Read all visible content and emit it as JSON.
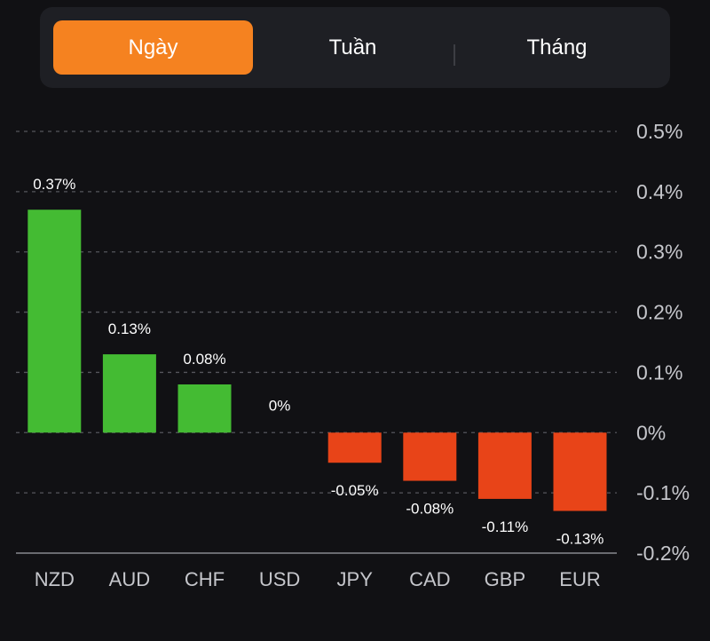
{
  "tabs": [
    {
      "label": "Ngày",
      "active": true
    },
    {
      "label": "Tuần",
      "active": false
    },
    {
      "label": "Tháng",
      "active": false
    }
  ],
  "colors": {
    "positive": "#44bb33",
    "negative": "#e84418",
    "accent": "#f58220",
    "background": "#111114",
    "grid": "#55565c",
    "text": "#c5c6cb"
  },
  "chart_data": {
    "type": "bar",
    "categories": [
      "NZD",
      "AUD",
      "CHF",
      "USD",
      "JPY",
      "CAD",
      "GBP",
      "EUR"
    ],
    "values": [
      0.37,
      0.13,
      0.08,
      0,
      -0.05,
      -0.08,
      -0.11,
      -0.13
    ],
    "data_labels": [
      "0.37%",
      "0.13%",
      "0.08%",
      "0%",
      "-0.05%",
      "-0.08%",
      "-0.11%",
      "-0.13%"
    ],
    "y_ticks": [
      0.5,
      0.4,
      0.3,
      0.2,
      0.1,
      0,
      -0.1,
      -0.2
    ],
    "y_tick_labels": [
      "0.5%",
      "0.4%",
      "0.3%",
      "0.2%",
      "0.1%",
      "0%",
      "-0.1%",
      "-0.2%"
    ],
    "ylim": [
      -0.2,
      0.5
    ],
    "grid": true,
    "y_axis_position": "right"
  }
}
